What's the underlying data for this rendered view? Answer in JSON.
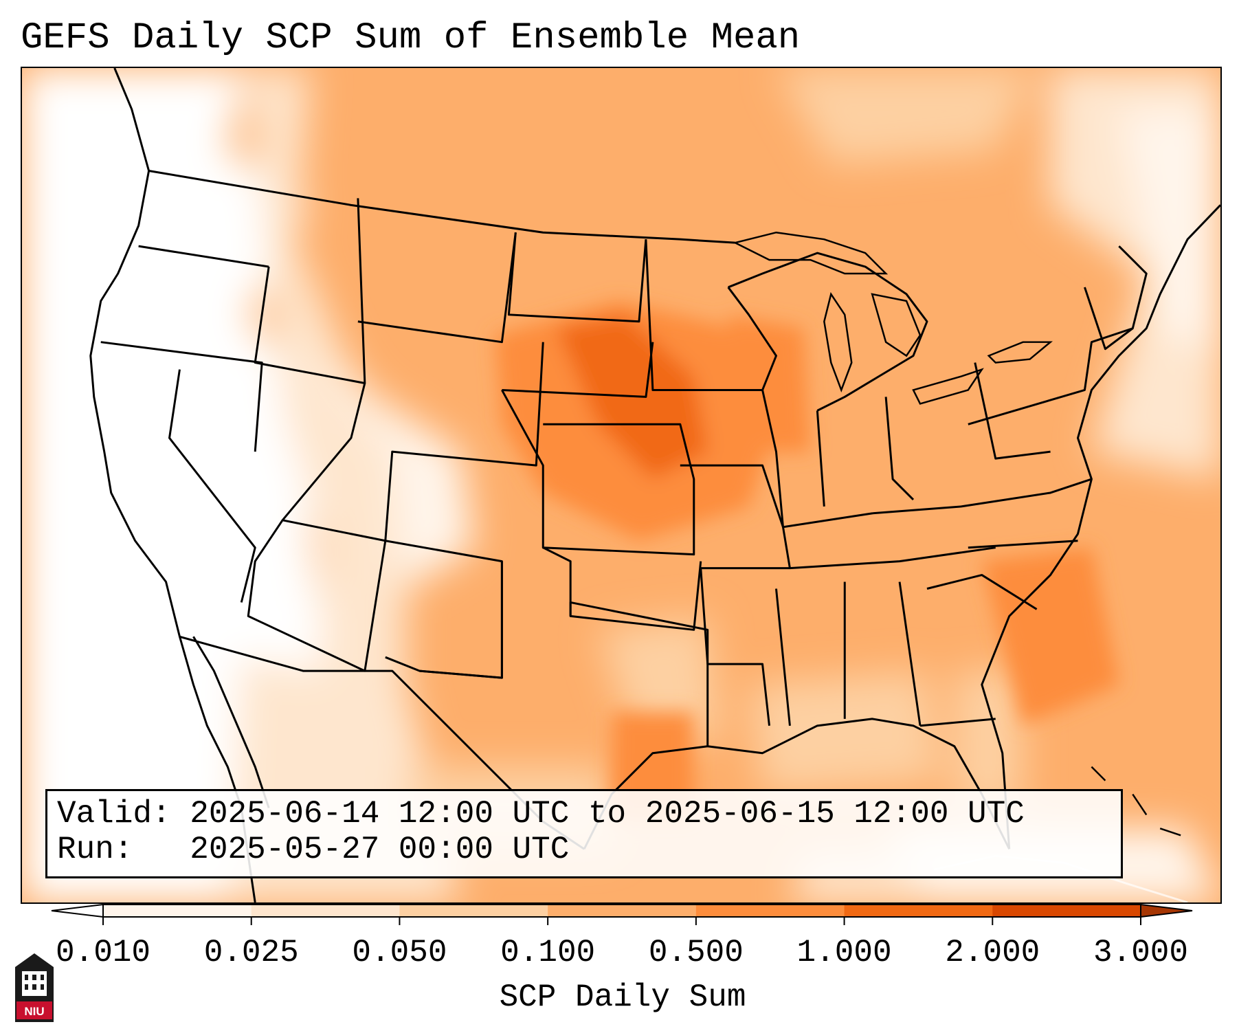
{
  "title": "GEFS Daily SCP Sum of Ensemble Mean",
  "info": {
    "valid_label": "Valid:",
    "valid_text": "2025-06-14 12:00 UTC to 2025-06-15 12:00 UTC",
    "run_label": "Run:",
    "run_text": "2025-05-27 00:00 UTC"
  },
  "colorbar": {
    "label": "SCP Daily Sum",
    "ticks": [
      "0.010",
      "0.025",
      "0.050",
      "0.100",
      "0.500",
      "1.000",
      "2.000",
      "3.000"
    ],
    "colors": [
      "#fff5eb",
      "#fee6ce",
      "#fdd0a2",
      "#fdae6b",
      "#fd8d3c",
      "#f16913",
      "#d94801"
    ],
    "extend_min_color": "#ffffff",
    "extend_max_color": "#a63603"
  },
  "logo": {
    "text": "NIU"
  }
}
